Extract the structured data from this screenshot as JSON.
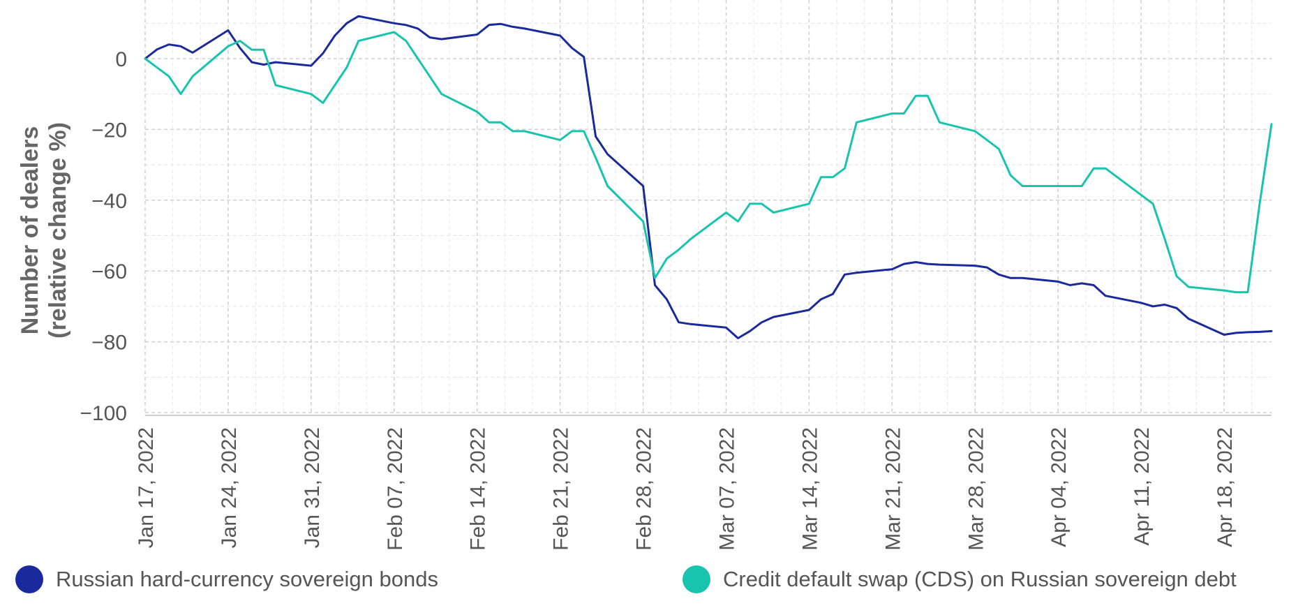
{
  "chart_data": {
    "type": "line",
    "ylabel_lines": [
      "Number of dealers",
      "(relative change %)"
    ],
    "ylim": [
      -100,
      15
    ],
    "yticks": [
      0,
      -20,
      -40,
      -60,
      -80,
      -100
    ],
    "xlim": [
      "2022-01-17",
      "2022-04-22"
    ],
    "xticks": [
      "2022-01-17",
      "2022-01-24",
      "2022-01-31",
      "2022-02-07",
      "2022-02-14",
      "2022-02-21",
      "2022-02-28",
      "2022-03-07",
      "2022-03-14",
      "2022-03-21",
      "2022-03-28",
      "2022-04-04",
      "2022-04-11",
      "2022-04-18"
    ],
    "xtick_labels": [
      "Jan 17, 2022",
      "Jan 24, 2022",
      "Jan 31, 2022",
      "Feb 07, 2022",
      "Feb 14, 2022",
      "Feb 21, 2022",
      "Feb 28, 2022",
      "Mar 07, 2022",
      "Mar 14, 2022",
      "Mar 21, 2022",
      "Mar 28, 2022",
      "Apr 04, 2022",
      "Apr 11, 2022",
      "Apr 18, 2022"
    ],
    "grid": true,
    "legend_position": "bottom",
    "series": [
      {
        "name": "Russian hard-currency sovereign bonds",
        "color": "#1a2a9c",
        "points": [
          [
            "2022-01-17",
            0
          ],
          [
            "2022-01-18",
            2.6
          ],
          [
            "2022-01-19",
            4
          ],
          [
            "2022-01-20",
            3.5
          ],
          [
            "2022-01-21",
            1.7
          ],
          [
            "2022-01-24",
            8
          ],
          [
            "2022-01-25",
            3
          ],
          [
            "2022-01-26",
            -1
          ],
          [
            "2022-01-27",
            -1.7
          ],
          [
            "2022-01-28",
            -1
          ],
          [
            "2022-01-31",
            -2
          ],
          [
            "2022-02-01",
            1.5
          ],
          [
            "2022-02-02",
            6.5
          ],
          [
            "2022-02-03",
            10
          ],
          [
            "2022-02-04",
            12
          ],
          [
            "2022-02-07",
            10
          ],
          [
            "2022-02-08",
            9.5
          ],
          [
            "2022-02-09",
            8.5
          ],
          [
            "2022-02-10",
            6
          ],
          [
            "2022-02-11",
            5.5
          ],
          [
            "2022-02-14",
            6.8
          ],
          [
            "2022-02-15",
            9.5
          ],
          [
            "2022-02-16",
            9.8
          ],
          [
            "2022-02-17",
            9
          ],
          [
            "2022-02-18",
            8.5
          ],
          [
            "2022-02-21",
            6.5
          ],
          [
            "2022-02-22",
            3
          ],
          [
            "2022-02-23",
            0.5
          ],
          [
            "2022-02-24",
            -22
          ],
          [
            "2022-02-25",
            -27
          ],
          [
            "2022-02-28",
            -36
          ],
          [
            "2022-03-01",
            -64
          ],
          [
            "2022-03-02",
            -68
          ],
          [
            "2022-03-03",
            -74.5
          ],
          [
            "2022-03-04",
            -75
          ],
          [
            "2022-03-07",
            -76
          ],
          [
            "2022-03-08",
            -79
          ],
          [
            "2022-03-09",
            -77
          ],
          [
            "2022-03-10",
            -74.5
          ],
          [
            "2022-03-11",
            -73
          ],
          [
            "2022-03-14",
            -71
          ],
          [
            "2022-03-15",
            -68
          ],
          [
            "2022-03-16",
            -66.5
          ],
          [
            "2022-03-17",
            -61
          ],
          [
            "2022-03-18",
            -60.5
          ],
          [
            "2022-03-21",
            -59.5
          ],
          [
            "2022-03-22",
            -58
          ],
          [
            "2022-03-23",
            -57.5
          ],
          [
            "2022-03-24",
            -58
          ],
          [
            "2022-03-25",
            -58.2
          ],
          [
            "2022-03-28",
            -58.5
          ],
          [
            "2022-03-29",
            -59
          ],
          [
            "2022-03-30",
            -61
          ],
          [
            "2022-03-31",
            -62
          ],
          [
            "2022-04-01",
            -62
          ],
          [
            "2022-04-04",
            -63
          ],
          [
            "2022-04-05",
            -64
          ],
          [
            "2022-04-06",
            -63.5
          ],
          [
            "2022-04-07",
            -64
          ],
          [
            "2022-04-08",
            -67
          ],
          [
            "2022-04-11",
            -69
          ],
          [
            "2022-04-12",
            -70
          ],
          [
            "2022-04-13",
            -69.5
          ],
          [
            "2022-04-14",
            -70.5
          ],
          [
            "2022-04-15",
            -73.5
          ],
          [
            "2022-04-18",
            -78
          ],
          [
            "2022-04-19",
            -77.5
          ],
          [
            "2022-04-20",
            -77.3
          ],
          [
            "2022-04-21",
            -77.2
          ],
          [
            "2022-04-22",
            -77
          ]
        ]
      },
      {
        "name": "Credit default swap (CDS) on Russian sovereign debt",
        "color": "#19c4ae",
        "points": [
          [
            "2022-01-17",
            0
          ],
          [
            "2022-01-18",
            -2.5
          ],
          [
            "2022-01-19",
            -5
          ],
          [
            "2022-01-20",
            -10
          ],
          [
            "2022-01-21",
            -5
          ],
          [
            "2022-01-24",
            3.5
          ],
          [
            "2022-01-25",
            5
          ],
          [
            "2022-01-26",
            2.5
          ],
          [
            "2022-01-27",
            2.5
          ],
          [
            "2022-01-28",
            -7.5
          ],
          [
            "2022-01-31",
            -10
          ],
          [
            "2022-02-01",
            -12.5
          ],
          [
            "2022-02-02",
            -7.5
          ],
          [
            "2022-02-03",
            -2.5
          ],
          [
            "2022-02-04",
            5
          ],
          [
            "2022-02-07",
            7.5
          ],
          [
            "2022-02-08",
            5
          ],
          [
            "2022-02-09",
            0
          ],
          [
            "2022-02-10",
            -5
          ],
          [
            "2022-02-11",
            -10
          ],
          [
            "2022-02-14",
            -15
          ],
          [
            "2022-02-15",
            -18
          ],
          [
            "2022-02-16",
            -18
          ],
          [
            "2022-02-17",
            -20.5
          ],
          [
            "2022-02-18",
            -20.5
          ],
          [
            "2022-02-21",
            -23
          ],
          [
            "2022-02-22",
            -20.5
          ],
          [
            "2022-02-23",
            -20.5
          ],
          [
            "2022-02-24",
            -28
          ],
          [
            "2022-02-25",
            -36
          ],
          [
            "2022-02-28",
            -46
          ],
          [
            "2022-03-01",
            -62
          ],
          [
            "2022-03-02",
            -56.5
          ],
          [
            "2022-03-03",
            -54
          ],
          [
            "2022-03-04",
            -51
          ],
          [
            "2022-03-07",
            -43.5
          ],
          [
            "2022-03-08",
            -46
          ],
          [
            "2022-03-09",
            -41
          ],
          [
            "2022-03-10",
            -41
          ],
          [
            "2022-03-11",
            -43.5
          ],
          [
            "2022-03-14",
            -41
          ],
          [
            "2022-03-15",
            -33.5
          ],
          [
            "2022-03-16",
            -33.5
          ],
          [
            "2022-03-17",
            -31
          ],
          [
            "2022-03-18",
            -18
          ],
          [
            "2022-03-21",
            -15.5
          ],
          [
            "2022-03-22",
            -15.5
          ],
          [
            "2022-03-23",
            -10.5
          ],
          [
            "2022-03-24",
            -10.5
          ],
          [
            "2022-03-25",
            -18
          ],
          [
            "2022-03-28",
            -20.5
          ],
          [
            "2022-03-29",
            -23
          ],
          [
            "2022-03-30",
            -25.5
          ],
          [
            "2022-03-31",
            -33
          ],
          [
            "2022-04-01",
            -36
          ],
          [
            "2022-04-04",
            -36
          ],
          [
            "2022-04-05",
            -36
          ],
          [
            "2022-04-06",
            -36
          ],
          [
            "2022-04-07",
            -31
          ],
          [
            "2022-04-08",
            -31
          ],
          [
            "2022-04-11",
            -38.5
          ],
          [
            "2022-04-12",
            -41
          ],
          [
            "2022-04-13",
            -51
          ],
          [
            "2022-04-14",
            -61.5
          ],
          [
            "2022-04-15",
            -64.5
          ],
          [
            "2022-04-18",
            -65.5
          ],
          [
            "2022-04-19",
            -66
          ],
          [
            "2022-04-20",
            -66
          ],
          [
            "2022-04-21",
            -41
          ],
          [
            "2022-04-22",
            -18.5
          ]
        ]
      }
    ]
  },
  "legend": {
    "items": [
      {
        "label": "Russian hard-currency sovereign bonds",
        "color": "#1a2a9c"
      },
      {
        "label": "Credit default swap (CDS) on Russian sovereign debt",
        "color": "#19c4ae"
      }
    ]
  }
}
